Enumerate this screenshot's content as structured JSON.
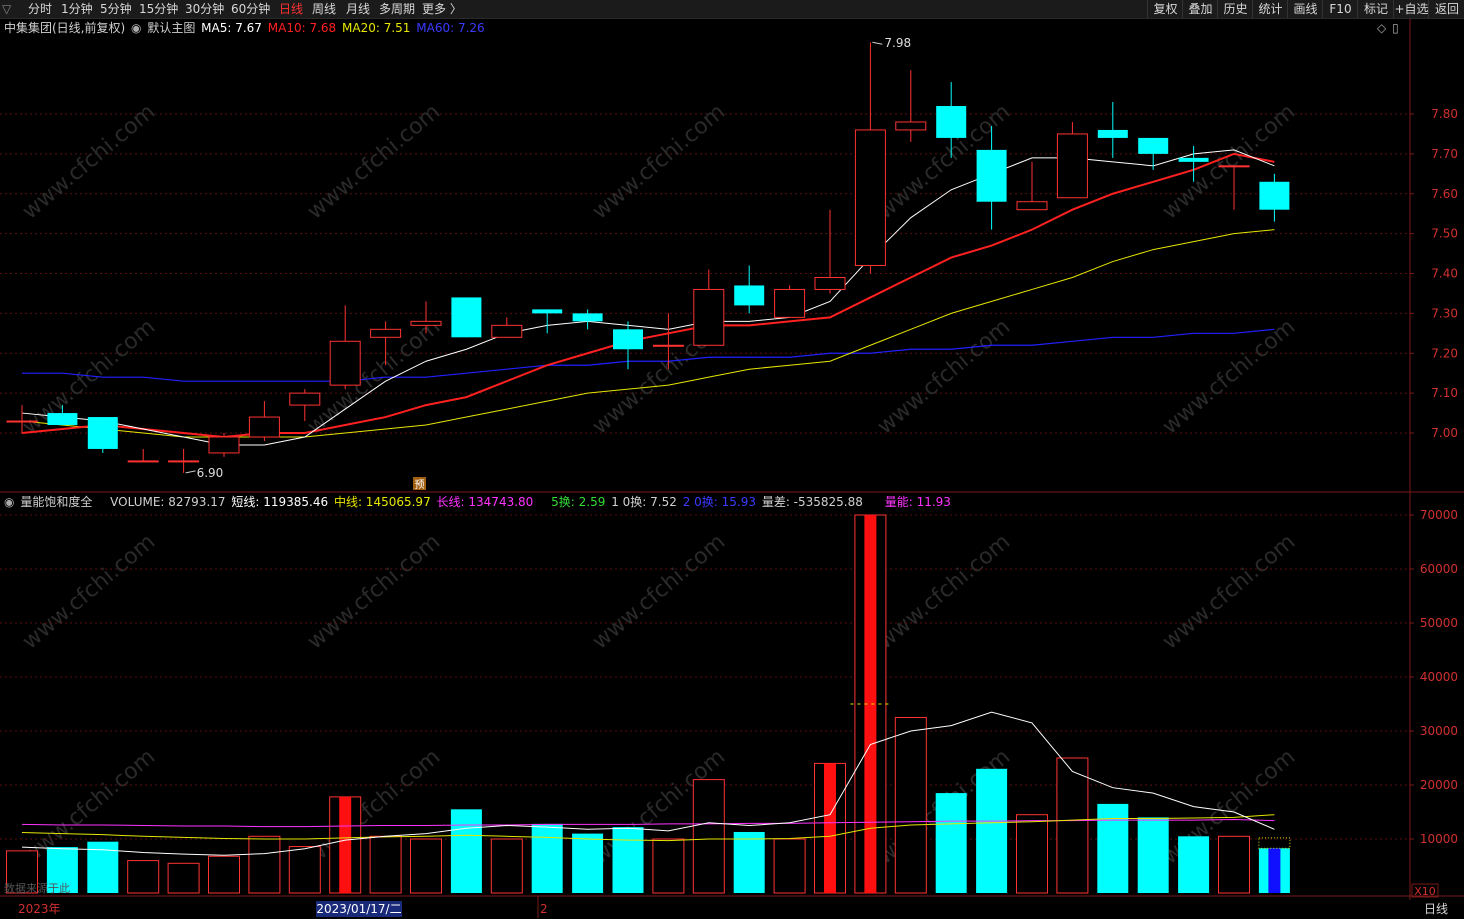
{
  "toolbar": {
    "periods": [
      {
        "label": "分时",
        "active": false
      },
      {
        "label": "1分钟",
        "active": false
      },
      {
        "label": "5分钟",
        "active": false
      },
      {
        "label": "15分钟",
        "active": false
      },
      {
        "label": "30分钟",
        "active": false
      },
      {
        "label": "60分钟",
        "active": false
      },
      {
        "label": "日线",
        "active": true
      },
      {
        "label": "周线",
        "active": false
      },
      {
        "label": "月线",
        "active": false
      },
      {
        "label": "多周期",
        "active": false
      },
      {
        "label": "更多 〉",
        "active": false
      }
    ],
    "right_buttons": [
      "复权",
      "叠加",
      "历史",
      "统计",
      "画线",
      "F10",
      "标记",
      "+自选",
      "返回"
    ]
  },
  "main_info": {
    "stock": "中集集团(日线,前复权)",
    "template": "默认主图",
    "ma5": "MA5: 7.67",
    "ma10": "MA10: 7.68",
    "ma20": "MA20: 7.51",
    "ma60": "MA60: 7.26"
  },
  "sub_info": {
    "indicator": "量能饱和度全",
    "volume": "VOLUME: 82793.17",
    "short": "短线: 119385.46",
    "mid": "中线: 145065.97",
    "long": "长线: 134743.80",
    "h5": "5换: 2.59",
    "h10": "1 0换: 7.52",
    "h20": "2 0换: 15.93",
    "diff": "量差: -535825.88",
    "energy": "量能: 11.93"
  },
  "annotations": {
    "high_label": "7.98",
    "low_label": "6.90",
    "forecast_mark": "预",
    "x10_label": "X10",
    "source_label": "数据来源于此",
    "period_label": "日线"
  },
  "timeline": {
    "year": "2023年",
    "cursor_date": "2023/01/17/二",
    "month_mark": "2"
  },
  "watermark": "www.cfchi.com",
  "colors": {
    "up": "#ff3232",
    "down": "#00ffff",
    "ma5": "#ffffff",
    "ma10": "#ff2020",
    "ma20": "#e6e600",
    "ma60": "#2020ff",
    "vol_long": "#ff33ff",
    "vol_mid": "#e6e600",
    "vol_short": "#ffffff"
  },
  "chart_data": {
    "type": "candlestick",
    "price_axis": {
      "ticks": [
        7.0,
        7.1,
        7.2,
        7.3,
        7.4,
        7.5,
        7.6,
        7.7,
        7.8
      ],
      "labels": [
        "7.00",
        "7.10",
        "7.20",
        "7.30",
        "7.40",
        "7.50",
        "7.60",
        "7.70",
        "7.80"
      ],
      "range": [
        6.85,
        8.0
      ]
    },
    "candles": [
      {
        "o": 7.03,
        "h": 7.07,
        "l": 7.0,
        "c": 7.03
      },
      {
        "o": 7.05,
        "h": 7.07,
        "l": 7.02,
        "c": 7.02
      },
      {
        "o": 7.04,
        "h": 7.04,
        "l": 6.95,
        "c": 6.96
      },
      {
        "o": 6.93,
        "h": 6.96,
        "l": 6.93,
        "c": 6.93
      },
      {
        "o": 6.93,
        "h": 6.96,
        "l": 6.9,
        "c": 6.93
      },
      {
        "o": 6.95,
        "h": 7.0,
        "l": 6.94,
        "c": 6.99
      },
      {
        "o": 6.99,
        "h": 7.08,
        "l": 6.98,
        "c": 7.04
      },
      {
        "o": 7.07,
        "h": 7.11,
        "l": 7.03,
        "c": 7.1
      },
      {
        "o": 7.12,
        "h": 7.32,
        "l": 7.11,
        "c": 7.23
      },
      {
        "o": 7.24,
        "h": 7.28,
        "l": 7.17,
        "c": 7.26
      },
      {
        "o": 7.27,
        "h": 7.33,
        "l": 7.25,
        "c": 7.28
      },
      {
        "o": 7.34,
        "h": 7.34,
        "l": 7.24,
        "c": 7.24
      },
      {
        "o": 7.24,
        "h": 7.29,
        "l": 7.24,
        "c": 7.27
      },
      {
        "o": 7.31,
        "h": 7.31,
        "l": 7.25,
        "c": 7.3
      },
      {
        "o": 7.3,
        "h": 7.31,
        "l": 7.26,
        "c": 7.28
      },
      {
        "o": 7.26,
        "h": 7.28,
        "l": 7.16,
        "c": 7.21
      },
      {
        "o": 7.22,
        "h": 7.3,
        "l": 7.16,
        "c": 7.22
      },
      {
        "o": 7.22,
        "h": 7.41,
        "l": 7.22,
        "c": 7.36
      },
      {
        "o": 7.37,
        "h": 7.42,
        "l": 7.3,
        "c": 7.32
      },
      {
        "o": 7.29,
        "h": 7.37,
        "l": 7.29,
        "c": 7.36
      },
      {
        "o": 7.36,
        "h": 7.56,
        "l": 7.35,
        "c": 7.39
      },
      {
        "o": 7.42,
        "h": 7.98,
        "l": 7.4,
        "c": 7.76
      },
      {
        "o": 7.76,
        "h": 7.91,
        "l": 7.73,
        "c": 7.78
      },
      {
        "o": 7.82,
        "h": 7.88,
        "l": 7.69,
        "c": 7.74
      },
      {
        "o": 7.71,
        "h": 7.77,
        "l": 7.51,
        "c": 7.58
      },
      {
        "o": 7.56,
        "h": 7.68,
        "l": 7.56,
        "c": 7.58
      },
      {
        "o": 7.59,
        "h": 7.78,
        "l": 7.59,
        "c": 7.75
      },
      {
        "o": 7.76,
        "h": 7.83,
        "l": 7.69,
        "c": 7.74
      },
      {
        "o": 7.74,
        "h": 7.74,
        "l": 7.66,
        "c": 7.7
      },
      {
        "o": 7.69,
        "h": 7.72,
        "l": 7.63,
        "c": 7.68
      },
      {
        "o": 7.67,
        "h": 7.67,
        "l": 7.56,
        "c": 7.67
      },
      {
        "o": 7.63,
        "h": 7.65,
        "l": 7.53,
        "c": 7.56
      }
    ],
    "ma5": [
      7.05,
      7.04,
      7.03,
      7.01,
      6.99,
      6.97,
      6.97,
      6.99,
      7.06,
      7.13,
      7.18,
      7.21,
      7.25,
      7.27,
      7.28,
      7.27,
      7.26,
      7.28,
      7.28,
      7.29,
      7.33,
      7.44,
      7.54,
      7.61,
      7.65,
      7.69,
      7.69,
      7.68,
      7.67,
      7.7,
      7.71,
      7.67
    ],
    "ma10": [
      7.0,
      7.01,
      7.02,
      7.01,
      7.0,
      6.99,
      7.0,
      7.0,
      7.02,
      7.04,
      7.07,
      7.09,
      7.13,
      7.17,
      7.2,
      7.23,
      7.25,
      7.27,
      7.27,
      7.28,
      7.29,
      7.34,
      7.39,
      7.44,
      7.47,
      7.51,
      7.56,
      7.6,
      7.63,
      7.66,
      7.7,
      7.68
    ],
    "ma20": [
      7.03,
      7.02,
      7.01,
      7.0,
      6.99,
      6.99,
      6.99,
      6.99,
      7.0,
      7.01,
      7.02,
      7.04,
      7.06,
      7.08,
      7.1,
      7.11,
      7.12,
      7.14,
      7.16,
      7.17,
      7.18,
      7.22,
      7.26,
      7.3,
      7.33,
      7.36,
      7.39,
      7.43,
      7.46,
      7.48,
      7.5,
      7.51
    ],
    "ma60": [
      7.15,
      7.15,
      7.14,
      7.14,
      7.13,
      7.13,
      7.13,
      7.13,
      7.13,
      7.14,
      7.14,
      7.15,
      7.16,
      7.17,
      7.17,
      7.18,
      7.18,
      7.19,
      7.19,
      7.19,
      7.2,
      7.2,
      7.21,
      7.21,
      7.22,
      7.22,
      7.23,
      7.24,
      7.24,
      7.25,
      7.25,
      7.26
    ],
    "volume_axis": {
      "ticks": [
        10000,
        20000,
        30000,
        40000,
        50000,
        60000,
        70000
      ],
      "labels": [
        "10000",
        "20000",
        "30000",
        "40000",
        "50000",
        "60000",
        "70000"
      ],
      "range": [
        0,
        72000
      ]
    },
    "volumes": [
      7800,
      8500,
      9500,
      6000,
      5500,
      6800,
      10500,
      8600,
      17800,
      10500,
      10000,
      15500,
      10000,
      12800,
      11000,
      12200,
      10000,
      21000,
      11300,
      10000,
      24000,
      70000,
      32500,
      18500,
      23000,
      14500,
      25000,
      16500,
      14000,
      10500,
      10500,
      8280
    ],
    "highlight_vol": [
      false,
      false,
      false,
      false,
      false,
      false,
      false,
      false,
      true,
      false,
      false,
      false,
      false,
      false,
      false,
      false,
      false,
      false,
      false,
      false,
      true,
      true,
      false,
      false,
      false,
      false,
      false,
      false,
      false,
      false,
      false,
      true
    ],
    "vol_short": [
      8500,
      8200,
      8000,
      7500,
      7200,
      7000,
      7300,
      8200,
      9800,
      10500,
      11000,
      12000,
      12500,
      12200,
      11800,
      12000,
      11500,
      13000,
      12500,
      13000,
      14500,
      27500,
      30000,
      31000,
      33500,
      31500,
      22500,
      19500,
      18500,
      16000,
      15000,
      11800
    ],
    "vol_mid": [
      11200,
      11000,
      10800,
      10500,
      10300,
      10100,
      10000,
      10000,
      10200,
      10400,
      10500,
      10700,
      10500,
      10300,
      10000,
      9800,
      9700,
      10000,
      10000,
      10100,
      10500,
      12000,
      12600,
      12800,
      13000,
      13200,
      13500,
      13800,
      13800,
      13900,
      14000,
      14500
    ],
    "vol_long": [
      12700,
      12600,
      12600,
      12500,
      12400,
      12400,
      12300,
      12300,
      12400,
      12500,
      12500,
      12600,
      12600,
      12700,
      12700,
      12700,
      12800,
      12800,
      12900,
      12900,
      13000,
      13100,
      13200,
      13300,
      13300,
      13400,
      13400,
      13500,
      13500,
      13500,
      13600,
      13400
    ]
  }
}
